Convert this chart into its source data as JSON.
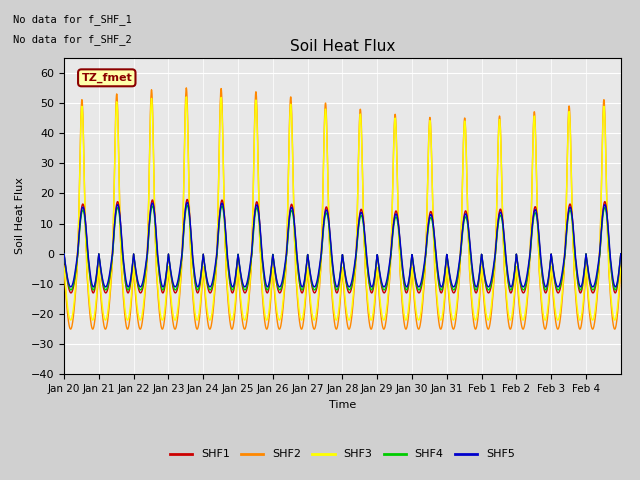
{
  "title": "Soil Heat Flux",
  "ylabel": "Soil Heat Flux",
  "xlabel": "Time",
  "ylim": [
    -40,
    65
  ],
  "annotation_line1": "No data for f_SHF_1",
  "annotation_line2": "No data for f_SHF_2",
  "box_label": "TZ_fmet",
  "bg_color": "#d0d0d0",
  "plot_bg_color": "#e8e8e8",
  "legend_entries": [
    "SHF1",
    "SHF2",
    "SHF3",
    "SHF4",
    "SHF5"
  ],
  "legend_colors": [
    "#cc0000",
    "#ff8800",
    "#ffff00",
    "#00cc00",
    "#0000cc"
  ],
  "xtick_labels": [
    "Jan 20",
    "Jan 21",
    "Jan 22",
    "Jan 23",
    "Jan 24",
    "Jan 25",
    "Jan 26",
    "Jan 27",
    "Jan 28",
    "Jan 29",
    "Jan 30",
    "Jan 31",
    "Feb 1",
    "Feb 2",
    "Feb 3",
    "Feb 4"
  ],
  "n_days": 16,
  "points_per_day": 144
}
